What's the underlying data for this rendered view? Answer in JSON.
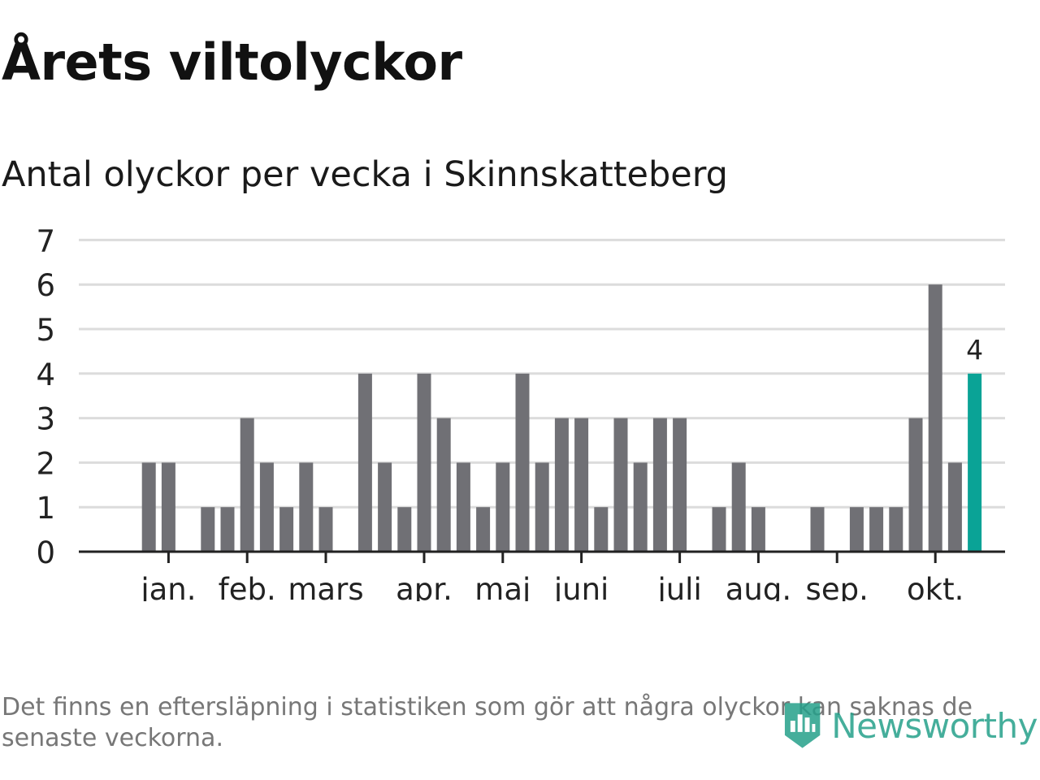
{
  "title": "Årets viltolyckor",
  "subtitle": "Antal olyckor per vecka i Skinnskatteberg",
  "footnote": "Det finns en eftersläpning i statistiken som gör att några olyckor kan saknas de senaste veckorna.",
  "logo": {
    "text": "Newsworthy",
    "icon": "newsworthy-logo-icon"
  },
  "colors": {
    "bar": "#707075",
    "highlight": "#0aa396",
    "grid": "#dcdcdc",
    "axis": "#222222",
    "text": "#222222"
  },
  "chart_data": {
    "type": "bar",
    "title": "Antal olyckor per vecka i Skinnskatteberg",
    "xlabel": "",
    "ylabel": "",
    "ylim": [
      0,
      7
    ],
    "yticks": [
      0,
      1,
      2,
      3,
      4,
      5,
      6,
      7
    ],
    "grid": true,
    "weeks": [
      1,
      2,
      3,
      4,
      5,
      6,
      7,
      8,
      9,
      10,
      11,
      12,
      13,
      14,
      15,
      16,
      17,
      18,
      19,
      20,
      21,
      22,
      23,
      24,
      25,
      26,
      27,
      28,
      29,
      30,
      31,
      32,
      33,
      34,
      35,
      36,
      37,
      38,
      39,
      40,
      41,
      42,
      43,
      44
    ],
    "values": [
      0,
      2,
      2,
      0,
      1,
      1,
      3,
      2,
      1,
      2,
      1,
      0,
      4,
      2,
      1,
      4,
      3,
      2,
      1,
      2,
      4,
      2,
      3,
      3,
      1,
      3,
      2,
      3,
      3,
      0,
      1,
      2,
      1,
      0,
      0,
      1,
      0,
      1,
      1,
      1,
      3,
      6,
      2,
      4
    ],
    "highlight_index": 43,
    "highlight_label": "4",
    "month_labels": [
      {
        "label": "jan.",
        "week": 3
      },
      {
        "label": "feb.",
        "week": 7
      },
      {
        "label": "mars",
        "week": 11
      },
      {
        "label": "apr.",
        "week": 16
      },
      {
        "label": "maj",
        "week": 20
      },
      {
        "label": "juni",
        "week": 24
      },
      {
        "label": "juli",
        "week": 29
      },
      {
        "label": "aug.",
        "week": 33
      },
      {
        "label": "sep.",
        "week": 37
      },
      {
        "label": "okt.",
        "week": 42
      }
    ]
  }
}
